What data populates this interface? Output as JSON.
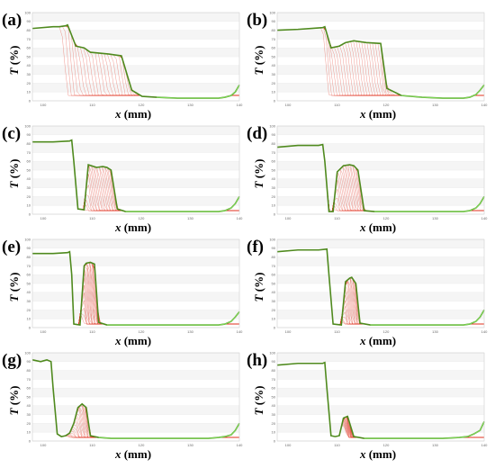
{
  "figure": {
    "panel_labels": [
      "(a)",
      "(b)",
      "(c)",
      "(d)",
      "(e)",
      "(f)",
      "(g)",
      "(h)"
    ],
    "x_axis_title_var": "x",
    "x_axis_title_unit": " (mm)",
    "y_axis_title_var": "T",
    "y_axis_title_unit": " (%)"
  },
  "colors": {
    "envelope": "#4f8a1e",
    "baseline": "#7ed957",
    "family": "#e0301e",
    "grid": "#ececec",
    "border": "#cfcfcf"
  },
  "chart_data": [
    {
      "type": "line",
      "panel": "(a)",
      "xlabel": "x (mm)",
      "ylabel": "T (%)",
      "ylim": [
        0,
        100
      ],
      "xlim": [
        0,
        100
      ],
      "y_ticks": [
        "0",
        "10",
        "20",
        "30",
        "40",
        "50",
        "60",
        "70",
        "80",
        "90",
        "100"
      ],
      "x_ticks": [
        "100",
        "110",
        "120",
        "130",
        "140"
      ],
      "grid": true,
      "series": [
        {
          "x": [
            0,
            10,
            13,
            16,
            17,
            21,
            25,
            28,
            37,
            43,
            48,
            53,
            60,
            70,
            80,
            87,
            90,
            93,
            96,
            98,
            100
          ],
          "y": [
            82,
            84,
            84,
            85,
            86,
            62,
            60,
            55,
            53,
            51,
            12,
            5,
            4,
            3,
            3,
            3,
            3,
            4,
            6,
            10,
            18
          ]
        }
      ],
      "fan_band": {
        "x_start": 14,
        "x_end": 55,
        "y_low": 5
      }
    },
    {
      "type": "line",
      "panel": "(b)",
      "xlabel": "x (mm)",
      "ylabel": "T (%)",
      "ylim": [
        0,
        100
      ],
      "xlim": [
        0,
        100
      ],
      "y_ticks": [
        "0",
        "10",
        "20",
        "30",
        "40",
        "50",
        "60",
        "70",
        "80",
        "90",
        "100"
      ],
      "x_ticks": [
        "100",
        "110",
        "120",
        "130",
        "140"
      ],
      "grid": true,
      "series": [
        {
          "x": [
            0,
            10,
            16,
            22,
            23,
            26,
            30,
            33,
            37,
            43,
            50,
            53,
            60,
            70,
            80,
            87,
            90,
            93,
            96,
            98,
            100
          ],
          "y": [
            80,
            81,
            82,
            83,
            84,
            60,
            62,
            66,
            68,
            66,
            65,
            14,
            6,
            4,
            3,
            3,
            3,
            4,
            7,
            12,
            18
          ]
        }
      ],
      "fan_band": {
        "x_start": 22,
        "x_end": 54,
        "y_low": 5
      }
    },
    {
      "type": "line",
      "panel": "(c)",
      "xlabel": "x (mm)",
      "ylabel": "T (%)",
      "ylim": [
        0,
        100
      ],
      "xlim": [
        0,
        100
      ],
      "y_ticks": [
        "0",
        "10",
        "20",
        "30",
        "40",
        "50",
        "60",
        "70",
        "80",
        "90",
        "100"
      ],
      "x_ticks": [
        "100",
        "110",
        "120",
        "130",
        "140"
      ],
      "grid": true,
      "series": [
        {
          "x": [
            0,
            10,
            18,
            19,
            20,
            22,
            25,
            27,
            31,
            34,
            36,
            38,
            41,
            45,
            55,
            65,
            75,
            85,
            90,
            93,
            96,
            98,
            100
          ],
          "y": [
            82,
            82,
            83,
            84,
            60,
            6,
            5,
            56,
            53,
            54,
            53,
            50,
            6,
            3,
            3,
            3,
            3,
            3,
            3,
            4,
            7,
            12,
            20
          ]
        }
      ],
      "fan_band": {
        "x_start": 23,
        "x_end": 41,
        "y_low": 3
      }
    },
    {
      "type": "line",
      "panel": "(d)",
      "xlabel": "x (mm)",
      "ylabel": "T (%)",
      "ylim": [
        0,
        100
      ],
      "xlim": [
        0,
        100
      ],
      "y_ticks": [
        "0",
        "10",
        "20",
        "30",
        "40",
        "50",
        "60",
        "70",
        "80",
        "90",
        "100"
      ],
      "x_ticks": [
        "100",
        "110",
        "120",
        "130",
        "140"
      ],
      "grid": true,
      "series": [
        {
          "x": [
            0,
            10,
            20,
            22,
            23,
            25,
            27,
            29,
            32,
            35,
            37,
            39,
            42,
            47,
            55,
            65,
            75,
            85,
            90,
            93,
            96,
            98,
            100
          ],
          "y": [
            76,
            78,
            78,
            79,
            60,
            3,
            3,
            48,
            55,
            56,
            55,
            50,
            4,
            3,
            3,
            3,
            3,
            3,
            3,
            4,
            7,
            12,
            20
          ]
        }
      ],
      "fan_band": {
        "x_start": 25,
        "x_end": 42,
        "y_low": 3
      }
    },
    {
      "type": "line",
      "panel": "(e)",
      "xlabel": "x (mm)",
      "ylabel": "T (%)",
      "ylim": [
        0,
        100
      ],
      "xlim": [
        0,
        100
      ],
      "y_ticks": [
        "0",
        "10",
        "20",
        "30",
        "40",
        "50",
        "60",
        "70",
        "80",
        "90",
        "100"
      ],
      "x_ticks": [
        "100",
        "110",
        "120",
        "130",
        "140"
      ],
      "grid": true,
      "series": [
        {
          "x": [
            0,
            10,
            17,
            18,
            19,
            20,
            23,
            25,
            26,
            28,
            30,
            32,
            36,
            45,
            55,
            65,
            75,
            85,
            90,
            93,
            96,
            98,
            100
          ],
          "y": [
            84,
            84,
            85,
            86,
            60,
            4,
            3,
            70,
            73,
            74,
            72,
            6,
            3,
            3,
            3,
            3,
            3,
            3,
            3,
            4,
            7,
            12,
            18
          ]
        }
      ],
      "fan_band": {
        "x_start": 22,
        "x_end": 32,
        "y_low": 3
      }
    },
    {
      "type": "line",
      "panel": "(f)",
      "xlabel": "x (mm)",
      "ylabel": "T (%)",
      "ylim": [
        0,
        100
      ],
      "xlim": [
        0,
        100
      ],
      "y_ticks": [
        "0",
        "10",
        "20",
        "30",
        "40",
        "50",
        "60",
        "70",
        "80",
        "90",
        "100"
      ],
      "x_ticks": [
        "100",
        "110",
        "120",
        "130",
        "140"
      ],
      "grid": true,
      "series": [
        {
          "x": [
            0,
            10,
            20,
            24,
            25,
            27,
            31,
            33,
            35,
            36,
            38,
            40,
            45,
            55,
            65,
            75,
            85,
            90,
            93,
            96,
            98,
            100
          ],
          "y": [
            86,
            88,
            88,
            89,
            60,
            4,
            3,
            52,
            56,
            57,
            50,
            5,
            3,
            3,
            3,
            3,
            3,
            3,
            4,
            7,
            12,
            20
          ]
        }
      ],
      "fan_band": {
        "x_start": 29,
        "x_end": 40,
        "y_low": 3
      }
    },
    {
      "type": "line",
      "panel": "(g)",
      "xlabel": "x (mm)",
      "ylabel": "T (%)",
      "ylim": [
        0,
        100
      ],
      "xlim": [
        0,
        100
      ],
      "y_ticks": [
        "0",
        "10",
        "20",
        "30",
        "40",
        "50",
        "60",
        "70",
        "80",
        "90",
        "100"
      ],
      "x_ticks": [
        "100",
        "110",
        "120",
        "130",
        "140"
      ],
      "grid": true,
      "series": [
        {
          "x": [
            0,
            4,
            7,
            8,
            9,
            10,
            12,
            14,
            16,
            18,
            20,
            22,
            24,
            26,
            28,
            32,
            38,
            45,
            55,
            65,
            75,
            85,
            90,
            93,
            96,
            98,
            100
          ],
          "y": [
            92,
            90,
            92,
            91,
            90,
            60,
            8,
            5,
            6,
            9,
            20,
            38,
            42,
            38,
            6,
            4,
            3,
            3,
            3,
            3,
            3,
            3,
            4,
            5,
            7,
            12,
            20
          ]
        }
      ],
      "fan_band": {
        "x_start": 15,
        "x_end": 28,
        "y_low": 3
      }
    },
    {
      "type": "line",
      "panel": "(h)",
      "xlabel": "x (mm)",
      "ylabel": "T (%)",
      "ylim": [
        0,
        100
      ],
      "xlim": [
        0,
        100
      ],
      "y_ticks": [
        "0",
        "10",
        "20",
        "30",
        "40",
        "50",
        "60",
        "70",
        "80",
        "90",
        "100"
      ],
      "x_ticks": [
        "100",
        "110",
        "120",
        "130",
        "140"
      ],
      "grid": true,
      "series": [
        {
          "x": [
            0,
            10,
            22,
            23,
            24,
            26,
            28,
            30,
            32,
            34,
            37,
            42,
            50,
            60,
            70,
            80,
            88,
            92,
            95,
            98,
            100
          ],
          "y": [
            86,
            88,
            88,
            89,
            60,
            6,
            5,
            6,
            26,
            28,
            5,
            3,
            3,
            3,
            3,
            3,
            4,
            5,
            8,
            12,
            22
          ]
        }
      ],
      "fan_band": {
        "x_start": 31,
        "x_end": 36,
        "y_low": 3
      }
    }
  ]
}
